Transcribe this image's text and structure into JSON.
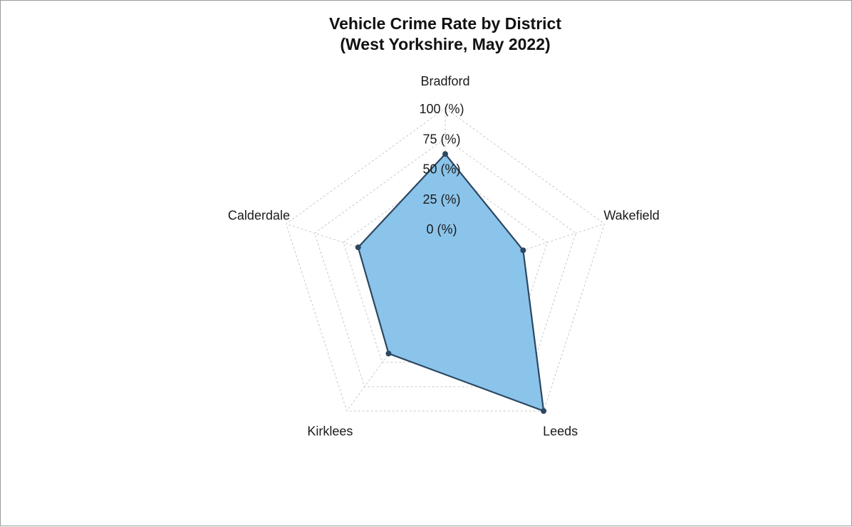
{
  "chart_data": {
    "type": "radar",
    "title": [
      "Vehicle Crime Rate by District",
      "(West Yorkshire, May 2022)"
    ],
    "axes": [
      "Bradford",
      "Wakefield",
      "Leeds",
      "Kirklees",
      "Calderdale"
    ],
    "values": [
      62,
      29,
      100,
      41,
      37
    ],
    "rlim": [
      0,
      100
    ],
    "ticks": [
      "0 (%)",
      "25 (%)",
      "50 (%)",
      "75 (%)",
      "100 (%)"
    ],
    "grid": true,
    "legend": "none",
    "colors": {
      "fill": "#85c1e9",
      "line": "#2c4762",
      "grid": "#c9c9c9"
    }
  }
}
